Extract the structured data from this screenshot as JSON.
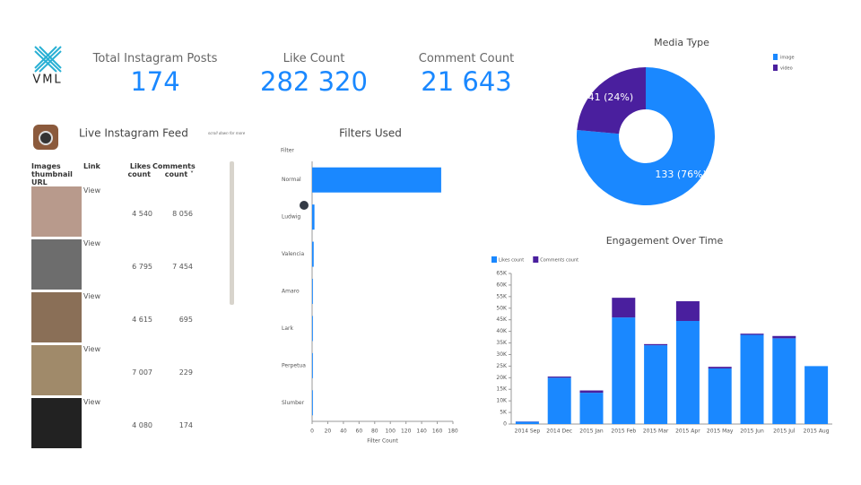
{
  "logo": {
    "text": "VML"
  },
  "kpis": [
    {
      "label": "Total Instagram Posts",
      "value": "174"
    },
    {
      "label": "Like Count",
      "value": "282 320"
    },
    {
      "label": "Comment Count",
      "value": "21 643"
    }
  ],
  "feed": {
    "title": "Live Instagram Feed",
    "note": "scroll down for more",
    "columns": [
      "Images thumbnail URL",
      "Link",
      "Likes count",
      "Comments count ˅"
    ],
    "rows": [
      [
        "View",
        "4 540",
        "8 056"
      ],
      [
        "View",
        "6 795",
        "7 454"
      ],
      [
        "View",
        "4 615",
        "695"
      ],
      [
        "View",
        "7 007",
        "229"
      ],
      [
        "View",
        "4 080",
        "174"
      ]
    ]
  },
  "chart_data": [
    {
      "type": "hbar",
      "title": "Filters Used",
      "y_label": "Filter",
      "x_label": "Filter Count",
      "categories": [
        "Normal",
        "Ludwig",
        "Valencia",
        "Amaro",
        "Lark",
        "Perpetua",
        "Slumber"
      ],
      "values": [
        165,
        3,
        2,
        1,
        1,
        1,
        1
      ],
      "color": "#1a88ff",
      "xlim": [
        0,
        180
      ],
      "xticks": [
        0,
        20,
        40,
        60,
        80,
        100,
        120,
        140,
        160,
        180
      ]
    },
    {
      "type": "pie",
      "title": "Media Type",
      "categories": [
        "image",
        "video"
      ],
      "values": [
        133,
        41
      ],
      "value_labels": [
        "133 (76%)",
        "41 (24%)"
      ],
      "colors": [
        "#1a88ff",
        "#4a1f9e"
      ],
      "legend": "top-right"
    },
    {
      "type": "stacked_bar",
      "title": "Engagement Over Time",
      "categories": [
        "2014 Sep",
        "2014 Dec",
        "2015 Jan",
        "2015 Feb",
        "2015 Mar",
        "2015 Apr",
        "2015 May",
        "2015 Jun",
        "2015 Jul",
        "2015 Aug"
      ],
      "series": [
        {
          "name": "Likes count",
          "color": "#1a88ff",
          "values": [
            1000,
            20000,
            13500,
            46000,
            34000,
            44500,
            24000,
            38500,
            37000,
            25000
          ]
        },
        {
          "name": "Comments count",
          "color": "#4a1f9e",
          "values": [
            100,
            500,
            1000,
            8500,
            500,
            8500,
            700,
            500,
            1000,
            0
          ]
        }
      ],
      "ylim": [
        0,
        65000
      ],
      "yticks": [
        0,
        {
          "value": 5000,
          "label": "5K"
        },
        {
          "value": 10000,
          "label": "10K"
        },
        {
          "value": 15000,
          "label": "15K"
        },
        {
          "value": 20000,
          "label": "20K"
        },
        {
          "value": 25000,
          "label": "25K"
        },
        {
          "value": 30000,
          "label": "30K"
        },
        {
          "value": 35000,
          "label": "35K"
        },
        {
          "value": 40000,
          "label": "40K"
        },
        {
          "value": 45000,
          "label": "45K"
        },
        {
          "value": 50000,
          "label": "50K"
        },
        {
          "value": 55000,
          "label": "55K"
        },
        {
          "value": 60000,
          "label": "60K"
        },
        {
          "value": 65000,
          "label": "65K"
        }
      ],
      "legend": "top-left"
    }
  ]
}
